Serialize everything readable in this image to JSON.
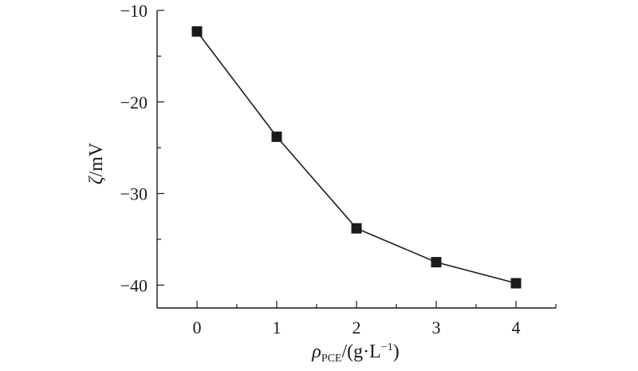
{
  "chart_data": {
    "type": "line",
    "x": [
      0,
      1,
      2,
      3,
      4
    ],
    "series": [
      {
        "values": [
          -12.3,
          -23.8,
          -33.8,
          -37.5,
          -39.8
        ],
        "color": "#1a1a1a",
        "marker": "square"
      }
    ],
    "xlim": [
      -0.5,
      4.5
    ],
    "ylim": [
      -42.5,
      -10
    ],
    "xticks": [
      0,
      1,
      2,
      3,
      4
    ],
    "yticks": [
      -10,
      -20,
      -30,
      -40
    ],
    "ylabel": {
      "symbol": "ζ",
      "unit": "/mV"
    },
    "xlabel": {
      "symbol": "ρ",
      "subscript": "PCE",
      "unit_open": "/(g·L",
      "superscript": "−1",
      "unit_close": ")"
    },
    "grid": false,
    "legend": "none"
  }
}
